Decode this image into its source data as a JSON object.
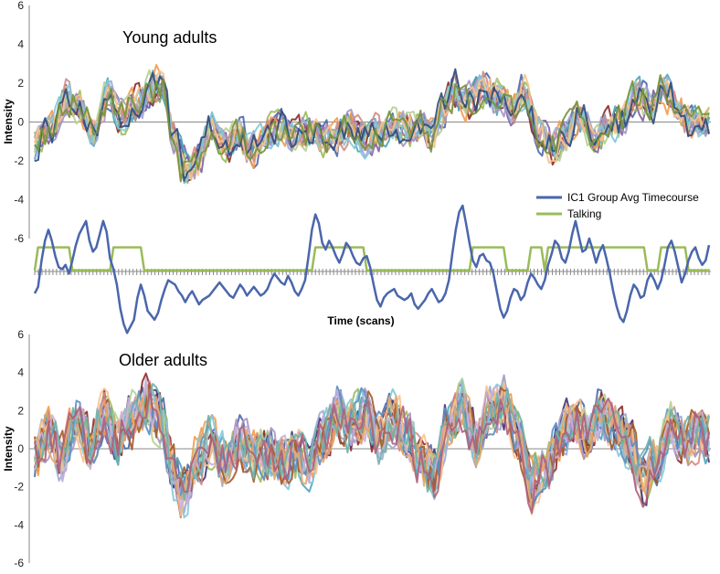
{
  "chart_data": [
    {
      "type": "line",
      "title": "Young adults",
      "ylabel": "Intensity",
      "ylim": [
        -6,
        6
      ],
      "yticks": [
        "6",
        "4",
        "2",
        "0",
        "-2",
        "-4",
        "-6"
      ],
      "n_scans": 195,
      "group_average_key": [
        [
          0,
          -1.2
        ],
        [
          5,
          -0.3
        ],
        [
          9,
          1.1
        ],
        [
          13,
          0.6
        ],
        [
          17,
          -0.5
        ],
        [
          21,
          1.4
        ],
        [
          25,
          0.3
        ],
        [
          29,
          0.9
        ],
        [
          33,
          1.6
        ],
        [
          37,
          1.9
        ],
        [
          40,
          -0.8
        ],
        [
          43,
          -2.4
        ],
        [
          47,
          -1.8
        ],
        [
          51,
          -0.2
        ],
        [
          55,
          -1.3
        ],
        [
          59,
          -0.6
        ],
        [
          63,
          -1.4
        ],
        [
          67,
          -0.4
        ],
        [
          71,
          -0.2
        ],
        [
          75,
          -0.8
        ],
        [
          79,
          -0.4
        ],
        [
          83,
          -0.9
        ],
        [
          87,
          -0.7
        ],
        [
          91,
          -0.2
        ],
        [
          95,
          -0.9
        ],
        [
          99,
          -0.5
        ],
        [
          103,
          -0.1
        ],
        [
          107,
          -0.4
        ],
        [
          111,
          -0.1
        ],
        [
          114,
          -0.7
        ],
        [
          117,
          0.5
        ],
        [
          121,
          1.6
        ],
        [
          125,
          1.0
        ],
        [
          129,
          1.8
        ],
        [
          133,
          1.2
        ],
        [
          137,
          0.6
        ],
        [
          141,
          1.4
        ],
        [
          145,
          -0.5
        ],
        [
          149,
          -1.2
        ],
        [
          153,
          -0.6
        ],
        [
          157,
          0.4
        ],
        [
          161,
          -0.8
        ],
        [
          165,
          -0.2
        ],
        [
          169,
          0.1
        ],
        [
          173,
          1.5
        ],
        [
          177,
          0.9
        ],
        [
          181,
          1.8
        ],
        [
          185,
          0.7
        ],
        [
          189,
          -0.1
        ],
        [
          194,
          0.1
        ]
      ],
      "series_colors": [
        "#4a66ac",
        "#9bbb59",
        "#8b2a2a",
        "#7f62a0",
        "#4fa5b8",
        "#f39a4c",
        "#9caad4",
        "#d48a84",
        "#b7cf93",
        "#a895c1",
        "#85c6d8",
        "#f8c28e",
        "#2e4a7a",
        "#76913a"
      ],
      "inset": {
        "xlabel": "Time (scans)",
        "series": [
          {
            "name": "IC1 Group Avg Timecourse",
            "color": "#4a66ac",
            "values": [
              -1.0,
              -0.7,
              0.5,
              1.4,
              1.9,
              1.4,
              0.7,
              0.2,
              0.1,
              0.3,
              -0.1,
              0.5,
              1.2,
              1.7,
              2.0,
              2.3,
              1.4,
              0.9,
              1.1,
              1.7,
              2.3,
              1.8,
              0.6,
              0.1,
              -0.6,
              -1.7,
              -2.4,
              -2.8,
              -2.5,
              -2.2,
              -1.2,
              -0.6,
              -1.1,
              -1.8,
              -2.0,
              -2.2,
              -1.9,
              -1.3,
              -0.8,
              -0.4,
              -0.5,
              -0.6,
              -0.9,
              -1.1,
              -1.4,
              -1.1,
              -0.9,
              -1.2,
              -1.5,
              -1.3,
              -1.2,
              -1.1,
              -0.9,
              -0.7,
              -0.5,
              -0.7,
              -0.9,
              -1.1,
              -1.2,
              -0.9,
              -0.6,
              -0.8,
              -1.1,
              -0.9,
              -0.7,
              -0.9,
              -1.1,
              -1.0,
              -0.8,
              -0.4,
              -0.1,
              -0.3,
              -0.5,
              -0.6,
              -0.2,
              -0.5,
              -0.9,
              -1.1,
              -0.8,
              -0.4,
              0.7,
              1.9,
              2.6,
              2.2,
              1.3,
              1.0,
              1.4,
              1.1,
              0.7,
              0.4,
              0.8,
              1.3,
              1.1,
              0.7,
              0.4,
              0.3,
              0.6,
              0.7,
              0.2,
              -0.6,
              -1.3,
              -1.6,
              -1.2,
              -1.0,
              -0.9,
              -0.8,
              -1.1,
              -1.2,
              -1.3,
              -1.2,
              -1.0,
              -1.5,
              -1.7,
              -1.5,
              -1.3,
              -1.0,
              -0.8,
              -1.1,
              -1.4,
              -1.3,
              -1.0,
              -0.4,
              0.8,
              1.9,
              2.7,
              3.0,
              2.2,
              1.3,
              0.5,
              0.2,
              0.7,
              0.8,
              0.5,
              0.4,
              -0.1,
              -0.9,
              -1.7,
              -2.1,
              -1.8,
              -1.2,
              -0.8,
              -0.9,
              -1.3,
              -1.1,
              -0.5,
              -0.1,
              -0.3,
              -0.6,
              -0.8,
              -0.4,
              0.3,
              0.8,
              1.4,
              1.2,
              0.6,
              0.4,
              0.9,
              1.7,
              2.3,
              1.6,
              0.9,
              1.0,
              1.5,
              1.0,
              0.4,
              0.9,
              1.2,
              0.6,
              -0.1,
              -0.9,
              -1.6,
              -2.1,
              -2.3,
              -1.8,
              -1.1,
              -0.6,
              -0.8,
              -1.2,
              -1.1,
              -0.4,
              -0.1,
              -0.4,
              -0.8,
              -0.4,
              0.3,
              1.1,
              1.4,
              0.9,
              0.2,
              -0.5,
              -0.1,
              0.5,
              0.9,
              1.1,
              0.6,
              0.3,
              0.5,
              1.2
            ]
          },
          {
            "name": "Talking",
            "color": "#9bbb59",
            "segments": [
              [
                1,
                10
              ],
              [
                23,
                31
              ],
              [
                82,
                96
              ],
              [
                128,
                137
              ],
              [
                145,
                148
              ],
              [
                150,
                178
              ],
              [
                183,
                190
              ]
            ]
          }
        ]
      }
    },
    {
      "type": "line",
      "title": "Older adults",
      "ylabel": "Intensity",
      "ylim": [
        -6,
        6
      ],
      "yticks": [
        "6",
        "4",
        "2",
        "0",
        "-2",
        "-4",
        "-6"
      ],
      "n_scans": 195,
      "group_average_key": [
        [
          0,
          -0.5
        ],
        [
          4,
          0.9
        ],
        [
          8,
          -0.4
        ],
        [
          12,
          1.5
        ],
        [
          16,
          0.4
        ],
        [
          20,
          1.8
        ],
        [
          24,
          0.6
        ],
        [
          28,
          1.6
        ],
        [
          32,
          2.2
        ],
        [
          36,
          1.8
        ],
        [
          40,
          -1.2
        ],
        [
          43,
          -2.4
        ],
        [
          47,
          -0.7
        ],
        [
          51,
          0.4
        ],
        [
          55,
          -0.6
        ],
        [
          59,
          0.3
        ],
        [
          63,
          -0.4
        ],
        [
          67,
          -0.1
        ],
        [
          71,
          -0.7
        ],
        [
          75,
          -0.3
        ],
        [
          79,
          -0.9
        ],
        [
          83,
          0.4
        ],
        [
          87,
          1.9
        ],
        [
          91,
          1.2
        ],
        [
          95,
          1.7
        ],
        [
          99,
          0.6
        ],
        [
          103,
          1.4
        ],
        [
          107,
          0.9
        ],
        [
          111,
          -0.8
        ],
        [
          115,
          -1.4
        ],
        [
          119,
          1.3
        ],
        [
          123,
          2.3
        ],
        [
          127,
          0.5
        ],
        [
          131,
          1.9
        ],
        [
          135,
          2.6
        ],
        [
          139,
          0.6
        ],
        [
          143,
          -1.9
        ],
        [
          147,
          -1.1
        ],
        [
          151,
          0.4
        ],
        [
          155,
          1.6
        ],
        [
          159,
          0.8
        ],
        [
          163,
          1.9
        ],
        [
          167,
          1.1
        ],
        [
          171,
          0.3
        ],
        [
          175,
          -1.6
        ],
        [
          179,
          -0.4
        ],
        [
          183,
          1.2
        ],
        [
          187,
          0.3
        ],
        [
          191,
          0.9
        ],
        [
          194,
          0.6
        ]
      ],
      "series_colors": [
        "#4a66ac",
        "#9bbb59",
        "#8b2a2a",
        "#3f3375",
        "#4fa5b8",
        "#f39a4c",
        "#9caad4",
        "#d48a84",
        "#b7cf93",
        "#a895c1",
        "#85c6d8",
        "#f8c28e",
        "#a35a2a",
        "#5c8fc4",
        "#c8b0d9",
        "#e6a66c",
        "#6fb3a8",
        "#b05f7a"
      ]
    }
  ]
}
